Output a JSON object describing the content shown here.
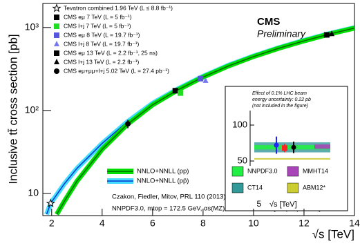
{
  "chart_data": [
    {
      "type": "log-scatter-band",
      "title": "CMS",
      "subtitle": "Preliminary",
      "y_label": "Inclusive tt̄ cross section [pb]",
      "x_label": "√s [TeV]",
      "xlim": [
        1.65,
        14
      ],
      "xticks": [
        2,
        4,
        6,
        8,
        10,
        12,
        14
      ],
      "ylim": [
        5.4,
        1950
      ],
      "log_y": true,
      "yticks": [
        10,
        {
          "value": 100,
          "label": "10²"
        },
        {
          "value": 1000,
          "label": "10³"
        }
      ],
      "annotations": [
        "Czakon, Fiedler, Mitov, PRL 110 (2013) 252004",
        "NNPDF3.0, mtop = 172.5 GeV, αs(MZ) = 0.118 ± 0.001 [*αs(MZ)=0.113]"
      ],
      "bands": [
        {
          "name": "NNLO+NNLL (pp)",
          "color": "#00dd00",
          "line_color": "#006600",
          "x": [
            2.2,
            2.5,
            3,
            4,
            5,
            6,
            7,
            8,
            9,
            10,
            11,
            12,
            13,
            14
          ],
          "values": [
            5.6,
            8,
            14,
            34,
            68,
            117,
            177,
            253,
            343,
            446,
            561,
            690,
            832,
            984
          ]
        },
        {
          "name": "NNLO+NNLL (pp̄)",
          "color": "#44ddff",
          "line_color": "#0033cc",
          "x": [
            1.8,
            1.96,
            2.5,
            3,
            4,
            5,
            6,
            7,
            8,
            9,
            10,
            11,
            12,
            13,
            14
          ],
          "values": [
            5.6,
            7.6,
            13,
            20,
            40,
            73,
            122,
            182,
            258,
            350,
            453,
            570,
            700,
            843,
            996
          ]
        }
      ],
      "series": [
        {
          "name": "Tevatron combined 1.96 TeV (L ≤ 8.8 fb⁻¹)",
          "marker": "star",
          "color": "#000000",
          "x": [
            1.96
          ],
          "values": [
            7.6
          ]
        },
        {
          "name": "CMS eμ 7 TeV (L = 5 fb⁻¹)",
          "marker": "square",
          "color": "#000000",
          "x": [
            6.9
          ],
          "values": [
            173
          ]
        },
        {
          "name": "CMS l+j 7 TeV (L = 5 fb⁻¹)",
          "marker": "square",
          "color": "#22dd22",
          "x": [
            7.1
          ],
          "values": [
            162
          ]
        },
        {
          "name": "CMS eμ 8 TeV (L = 19.7 fb⁻¹)",
          "marker": "square",
          "color": "#5555dd",
          "x": [
            7.9
          ],
          "values": [
            242
          ]
        },
        {
          "name": "CMS l+j 8 TeV (L = 19.7 fb⁻¹)",
          "marker": "triangle",
          "color": "#7777ee",
          "x": [
            8.1
          ],
          "values": [
            228
          ]
        },
        {
          "name": "CMS eμ 13 TeV (L = 2.2 fb⁻¹, 25 ns)",
          "marker": "square",
          "color": "#000000",
          "x": [
            12.9
          ],
          "values": [
            815
          ]
        },
        {
          "name": "CMS l+j 13 TeV (L = 2.2 fb⁻¹)",
          "marker": "triangle",
          "color": "#000000",
          "x": [
            13.1
          ],
          "values": [
            835
          ]
        },
        {
          "name": "CMS eμ+μμ+l+j 5.02 TeV (L = 27.4 pb⁻¹)",
          "marker": "circle",
          "color": "#000000",
          "x": [
            5.02
          ],
          "values": [
            69
          ],
          "errors": [
            8
          ]
        }
      ]
    },
    {
      "type": "inset",
      "note": [
        "Effect of 0.1% LHC beam",
        "energy uncertainty: 0.22 pb",
        "(not included in the figure)"
      ],
      "x_label": "√s [TeV]",
      "xlim": [
        4.9,
        6.0
      ],
      "xticks": [
        5
      ],
      "ylim": [
        0,
        150
      ],
      "yticks": [
        50,
        100
      ],
      "series": [
        {
          "name": "NNPDF3.0",
          "color": "#22ee44",
          "values": [
            69
          ],
          "errors": [
            3
          ]
        },
        {
          "name": "MMHT14",
          "color": "#aa44bb",
          "values": [
            70
          ],
          "errors": [
            3
          ]
        },
        {
          "name": "CT14",
          "color": "#339999",
          "values": [
            69
          ],
          "errors": [
            7
          ]
        },
        {
          "name": "ABM12*",
          "color": "#cccc33",
          "values": [
            53
          ],
          "errors": [
            1
          ]
        }
      ],
      "measurements": {
        "values": [
          72,
          68,
          69
        ],
        "errors": [
          12,
          6,
          8
        ],
        "colors": [
          "#2222ff",
          "#ff2222",
          "#000000"
        ]
      }
    }
  ]
}
